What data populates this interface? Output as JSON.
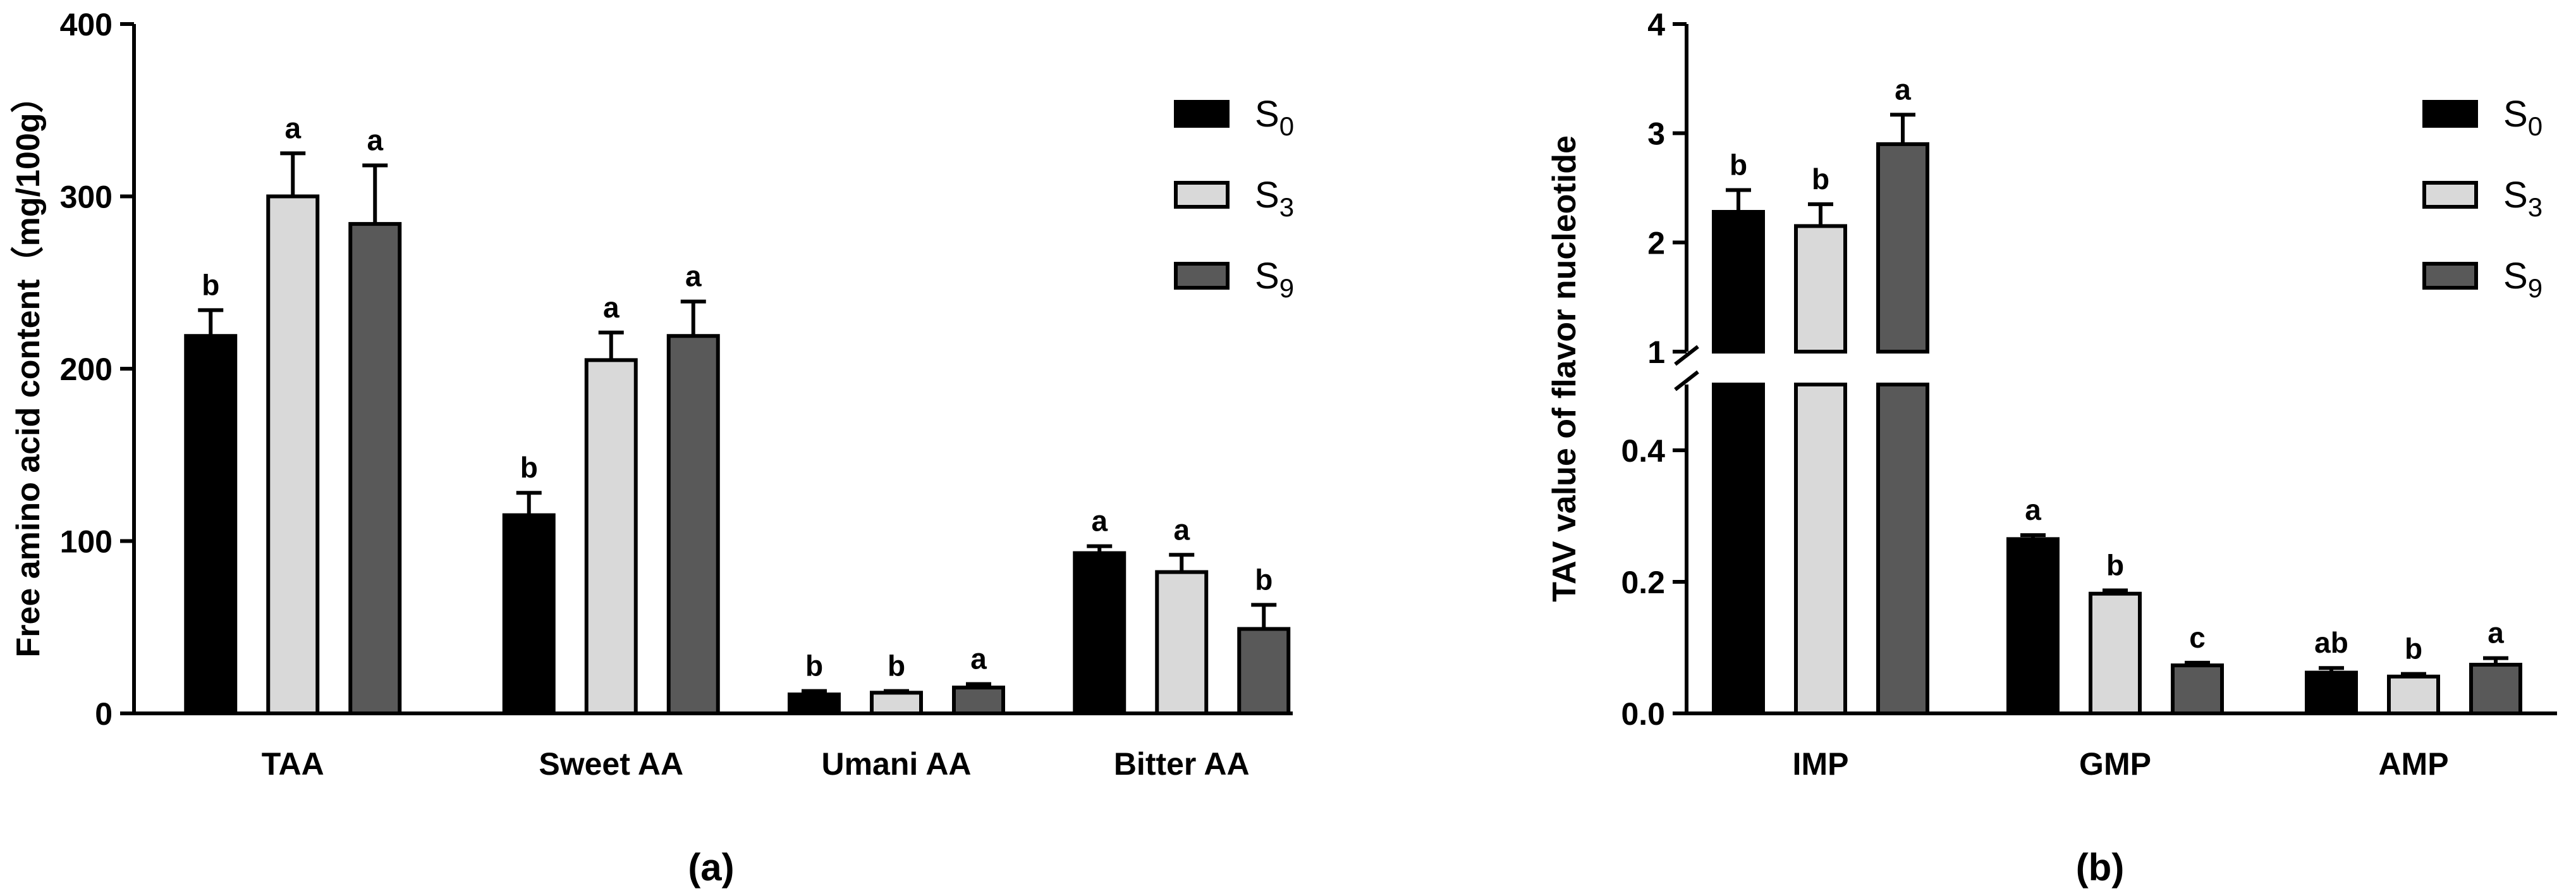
{
  "colors": {
    "S0": "#000000",
    "S3": "#d9d9d9",
    "S9": "#595959"
  },
  "chart_data": [
    {
      "type": "bar",
      "panel_label": "(a)",
      "ylabel": "Free amino acid content（mg/100g）",
      "ylim": [
        0,
        400
      ],
      "yticks": [
        "0",
        "100",
        "200",
        "300",
        "400"
      ],
      "categories": [
        "TAA",
        "Sweet AA",
        "Umani AA",
        "Bitter AA"
      ],
      "legend": [
        {
          "key": "S0",
          "base": "S",
          "sub": "0"
        },
        {
          "key": "S3",
          "base": "S",
          "sub": "3"
        },
        {
          "key": "S9",
          "base": "S",
          "sub": "9"
        }
      ],
      "series": [
        {
          "name": "S0",
          "values": [
            219,
            115,
            11,
            93
          ],
          "errors": [
            15,
            13,
            2,
            4
          ],
          "letters": [
            "b",
            "b",
            "b",
            "a"
          ]
        },
        {
          "name": "S3",
          "values": [
            300,
            205,
            12,
            82
          ],
          "errors": [
            25,
            16,
            1,
            10
          ],
          "letters": [
            "a",
            "a",
            "b",
            "a"
          ]
        },
        {
          "name": "S9",
          "values": [
            284,
            219,
            15,
            49
          ],
          "errors": [
            34,
            20,
            2,
            14
          ],
          "letters": [
            "a",
            "a",
            "a",
            "b"
          ]
        }
      ]
    },
    {
      "type": "bar",
      "panel_label": "(b)",
      "ylabel": "TAV value of flavor nucleotide",
      "axis_break": {
        "lower": [
          0,
          0.5
        ],
        "upper": [
          1,
          4
        ]
      },
      "yticks_lower": [
        "0.0",
        "0.2",
        "0.4"
      ],
      "yticks_upper": [
        "1",
        "2",
        "3",
        "4"
      ],
      "categories": [
        "IMP",
        "GMP",
        "AMP"
      ],
      "legend": [
        {
          "key": "S0",
          "base": "S",
          "sub": "0"
        },
        {
          "key": "S3",
          "base": "S",
          "sub": "3"
        },
        {
          "key": "S9",
          "base": "S",
          "sub": "9"
        }
      ],
      "series": [
        {
          "name": "S0",
          "values": [
            2.28,
            0.265,
            0.062
          ],
          "errors": [
            0.2,
            0.006,
            0.007
          ],
          "letters": [
            "b",
            "a",
            "ab"
          ]
        },
        {
          "name": "S3",
          "values": [
            2.15,
            0.182,
            0.056
          ],
          "errors": [
            0.2,
            0.005,
            0.004
          ],
          "letters": [
            "b",
            "b",
            "b"
          ]
        },
        {
          "name": "S9",
          "values": [
            2.9,
            0.073,
            0.074
          ],
          "errors": [
            0.27,
            0.004,
            0.01
          ],
          "letters": [
            "a",
            "c",
            "a"
          ]
        }
      ]
    }
  ]
}
